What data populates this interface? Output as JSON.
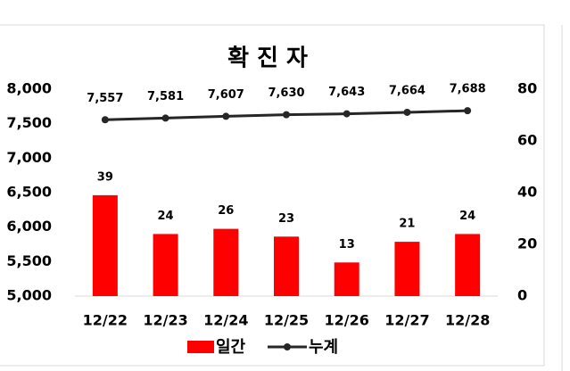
{
  "chart_data": {
    "type": "bar",
    "title": "확 진 자",
    "categories": [
      "12/22",
      "12/23",
      "12/24",
      "12/25",
      "12/26",
      "12/27",
      "12/28"
    ],
    "series": [
      {
        "name": "일간",
        "type": "bar",
        "axis": "y2",
        "color": "#ff0000",
        "values": [
          39,
          24,
          26,
          23,
          13,
          21,
          24
        ]
      },
      {
        "name": "누계",
        "type": "line",
        "color": "#262626",
        "values": [
          7557,
          7581,
          7607,
          7630,
          7643,
          7664,
          7688
        ],
        "value_labels": [
          "7,557",
          "7,581",
          "7,607",
          "7,630",
          "7,643",
          "7,664",
          "7,688"
        ]
      }
    ],
    "ylim": [
      5000,
      8000
    ],
    "yticks": [
      {
        "value": 5000,
        "label": "5,000"
      },
      {
        "value": 5500,
        "label": "5,500"
      },
      {
        "value": 6000,
        "label": "6,000"
      },
      {
        "value": 6500,
        "label": "6,500"
      },
      {
        "value": 7000,
        "label": "7,000"
      },
      {
        "value": 7500,
        "label": "7,500"
      },
      {
        "value": 8000,
        "label": "8,000"
      }
    ],
    "y2lim": [
      0,
      80
    ],
    "y2ticks": [
      0,
      20,
      40,
      60,
      80
    ],
    "grid": false,
    "legend": "bottom"
  }
}
